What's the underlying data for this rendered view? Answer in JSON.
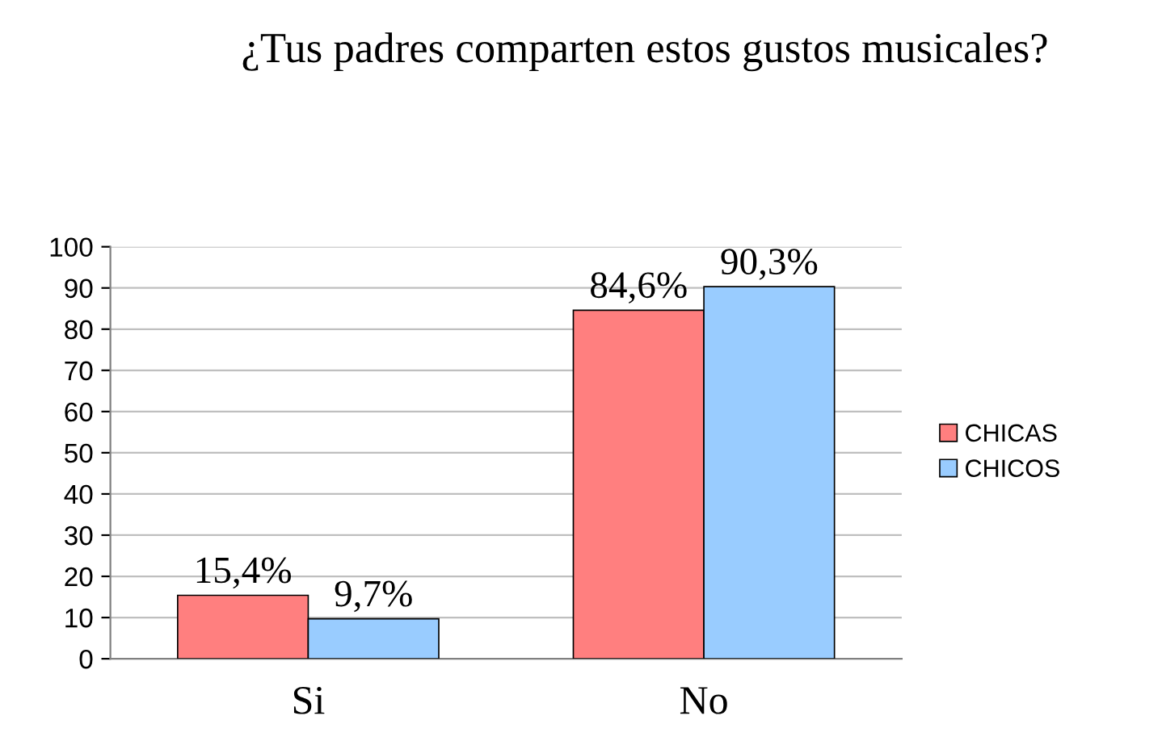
{
  "chart_data": {
    "type": "bar",
    "title": "¿Tus padres comparten estos gustos musicales?",
    "categories": [
      "Si",
      "No"
    ],
    "series": [
      {
        "name": "CHICAS",
        "color": "#ff7f7f",
        "values": [
          15.4,
          84.6
        ],
        "value_labels": [
          "15,4%",
          "84,6%"
        ]
      },
      {
        "name": "CHICOS",
        "color": "#99ccff",
        "values": [
          9.7,
          90.3
        ],
        "value_labels": [
          "9,7%",
          "90,3%"
        ]
      }
    ],
    "ylim": [
      0,
      100
    ],
    "yticks": [
      0,
      10,
      20,
      30,
      40,
      50,
      60,
      70,
      80,
      90,
      100
    ],
    "grid": "y",
    "legend": "right"
  }
}
